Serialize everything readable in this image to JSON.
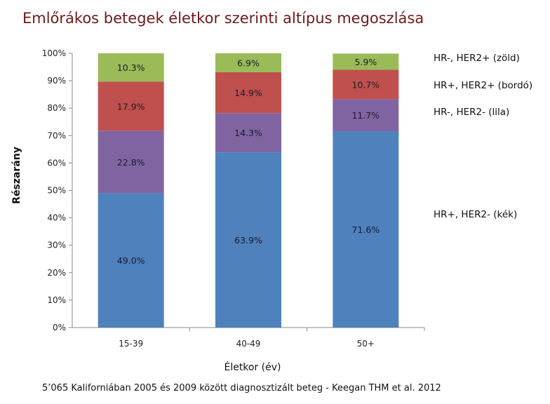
{
  "chart_data": {
    "type": "bar",
    "stacked": true,
    "title": "Emlőrákos betegek életkor szerinti altípus megoszlása",
    "xlabel": "Életkor (év)",
    "ylabel": "Részarány",
    "ylim": [
      0,
      100
    ],
    "yticks": [
      "0%",
      "10%",
      "20%",
      "30%",
      "40%",
      "50%",
      "60%",
      "70%",
      "80%",
      "90%",
      "100%"
    ],
    "categories": [
      "15-39",
      "40-49",
      "50+"
    ],
    "series": [
      {
        "name": "HR+, HER2- (kék)",
        "color": "#4f81bd",
        "values": [
          49.0,
          63.9,
          71.6
        ],
        "labels": [
          "49.0%",
          "63.9%",
          "71.6%"
        ]
      },
      {
        "name": "HR-, HER2- (lila)",
        "color": "#8064a2",
        "values": [
          22.8,
          14.3,
          11.7
        ],
        "labels": [
          "22.8%",
          "14.3%",
          "11.7%"
        ]
      },
      {
        "name": "HR+, HER2+ (bordó)",
        "color": "#c0504d",
        "values": [
          17.9,
          14.9,
          10.7
        ],
        "labels": [
          "17.9%",
          "14.9%",
          "10.7%"
        ]
      },
      {
        "name": "HR-, HER2+ (zöld)",
        "color": "#9bbb59",
        "values": [
          10.3,
          6.9,
          5.9
        ],
        "labels": [
          "10.3%",
          "6.9%",
          "5.9%"
        ]
      }
    ],
    "legend": "right",
    "footnote": "5’065 Kaliforniában 2005 és 2009 között diagnosztizált beteg - Keegan THM et al. 2012"
  }
}
